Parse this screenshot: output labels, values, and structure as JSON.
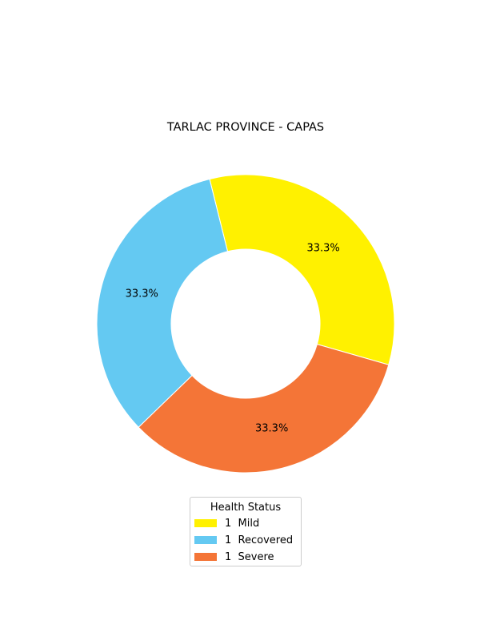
{
  "chart_data": {
    "type": "pie",
    "donut": true,
    "title": "TARLAC PROVINCE - CAPAS",
    "slices": [
      {
        "label": "1  Mild",
        "value": 1,
        "percent_label": "33.3%",
        "color": "#FFF100"
      },
      {
        "label": "1  Recovered",
        "value": 1,
        "percent_label": "33.3%",
        "color": "#64C9F2"
      },
      {
        "label": "1  Severe",
        "value": 1,
        "percent_label": "33.3%",
        "color": "#F47537"
      }
    ],
    "legend": {
      "title": "Health Status",
      "placement": "bottom-center"
    }
  }
}
